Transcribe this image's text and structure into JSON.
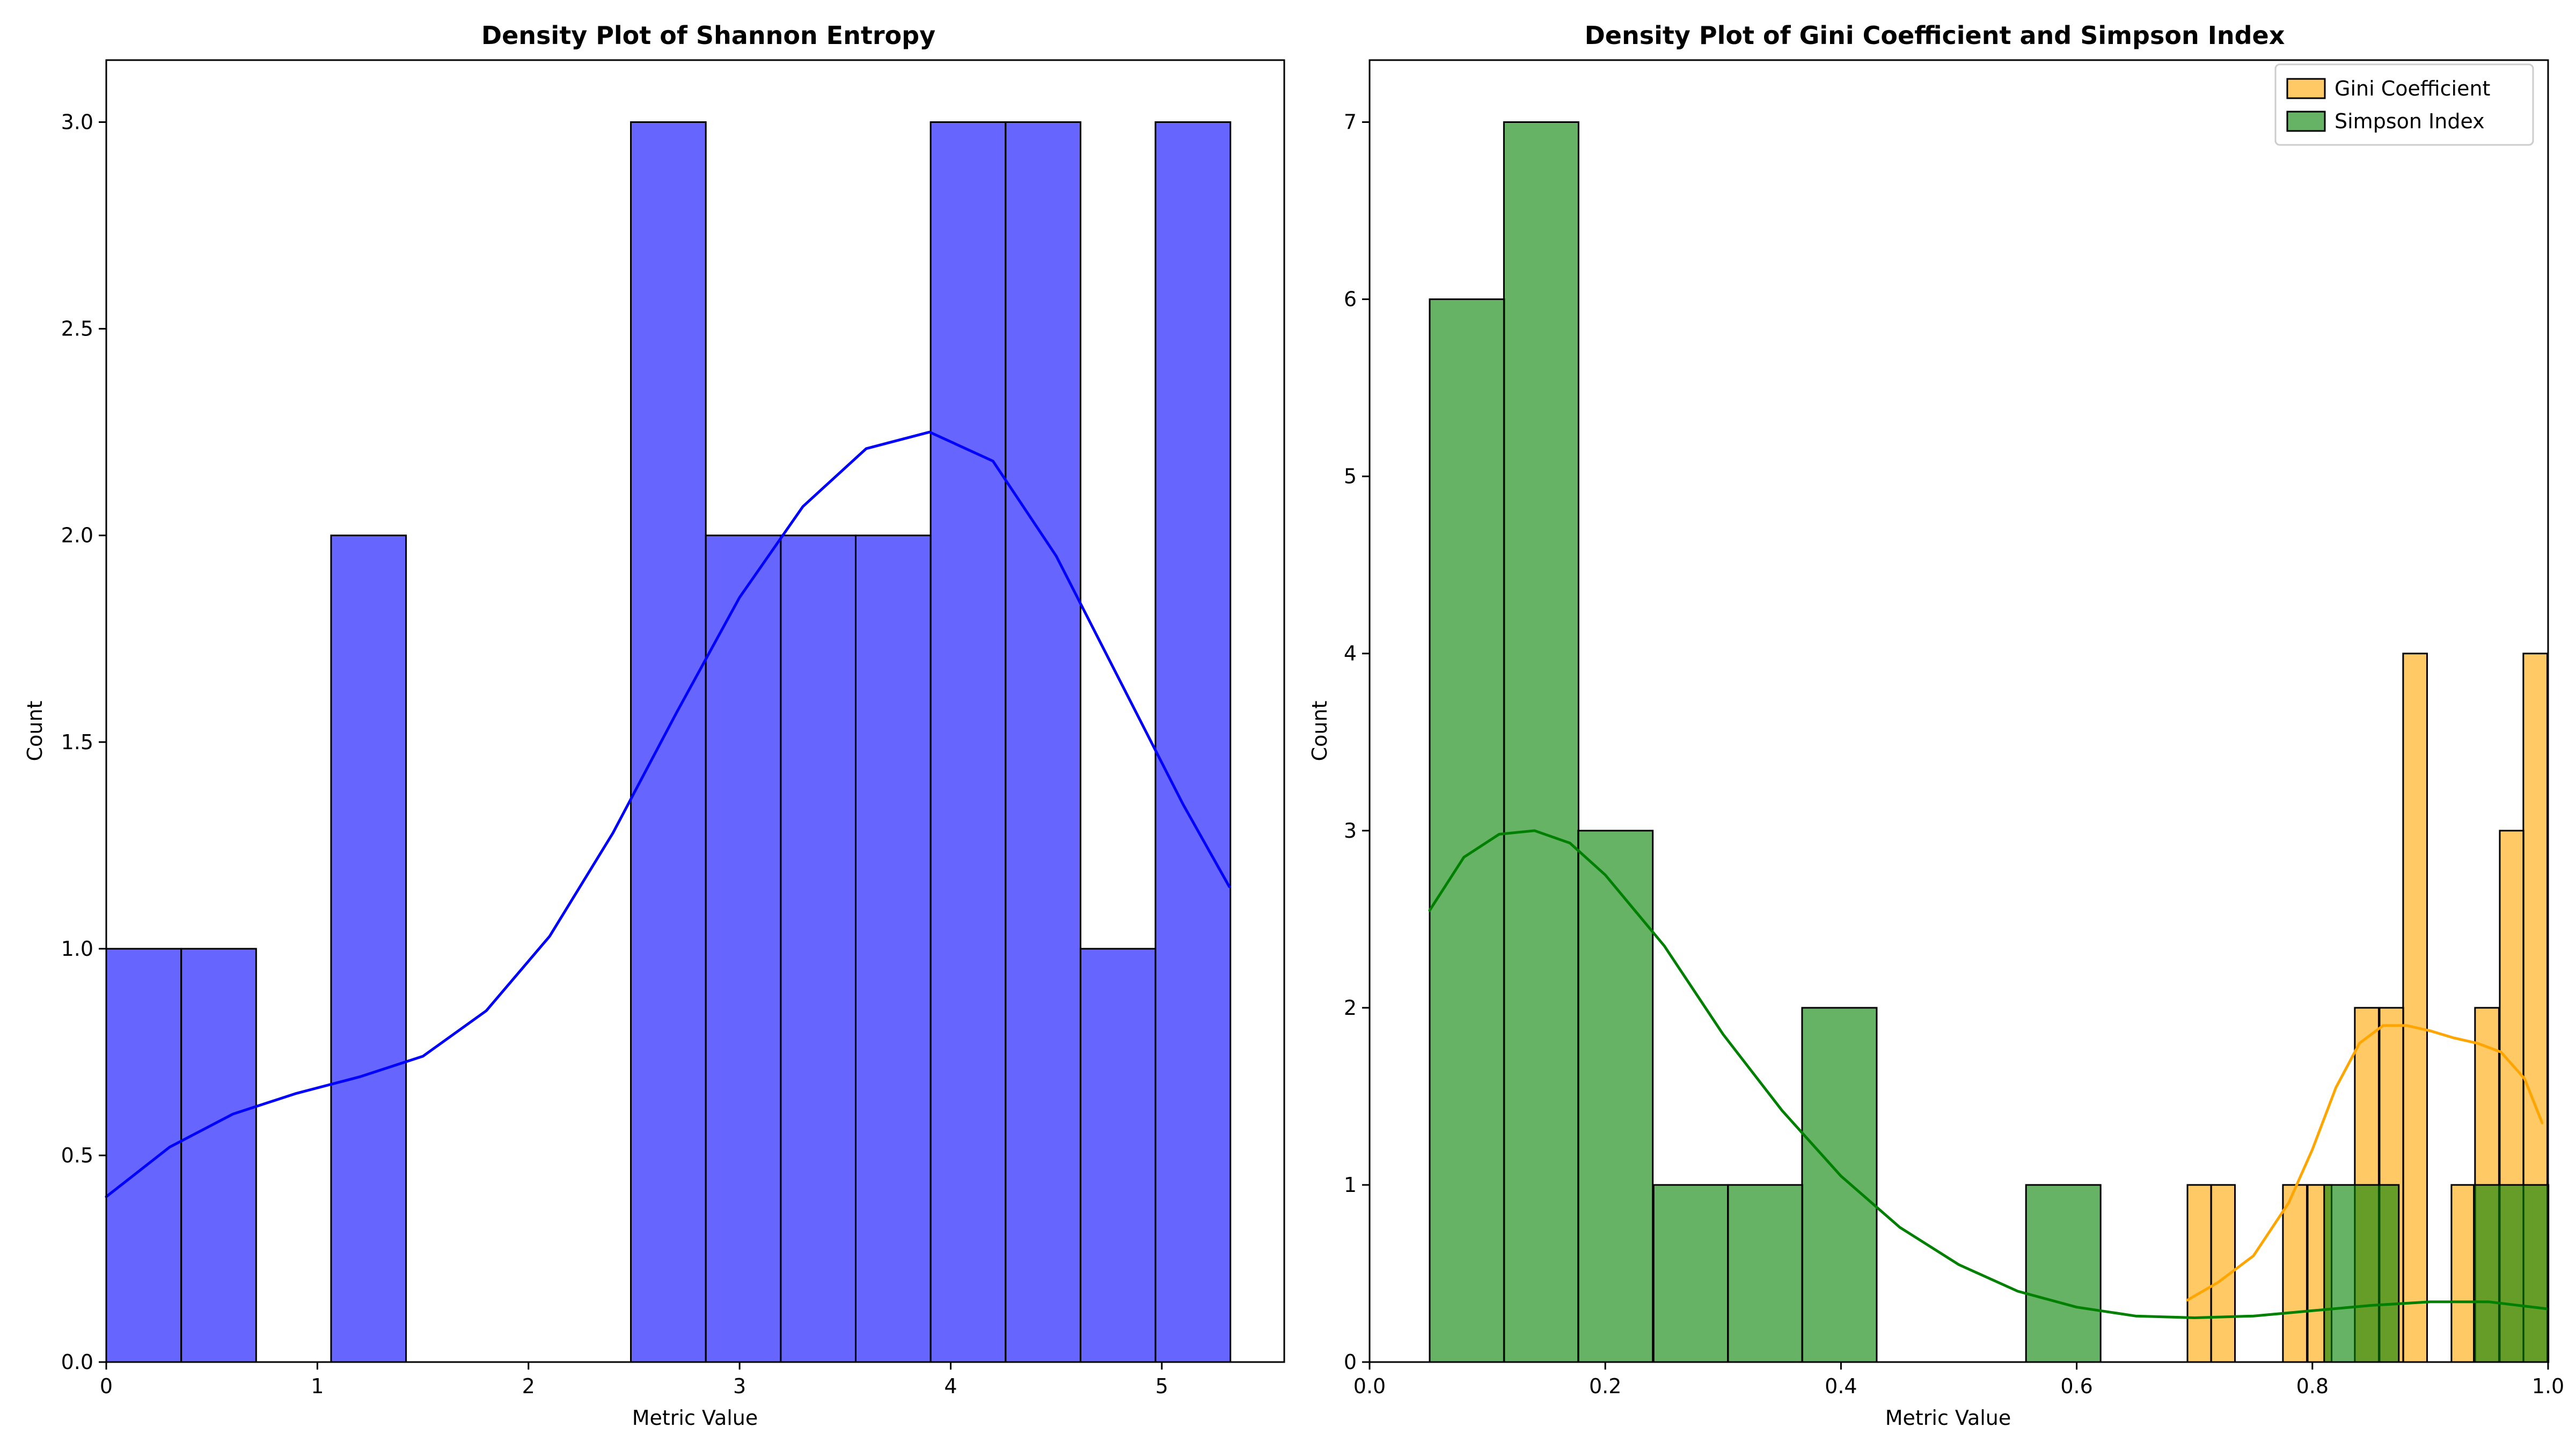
{
  "chart_data": [
    {
      "type": "histogram",
      "title": "Density Plot of Shannon Entropy",
      "xlabel": "Metric Value",
      "ylabel": "Count",
      "xlim": [
        0,
        5.58
      ],
      "ylim": [
        0,
        3.15
      ],
      "xticks": [
        "0",
        "1",
        "2",
        "3",
        "4",
        "5"
      ],
      "yticks": [
        "0.0",
        "0.5",
        "1.0",
        "1.5",
        "2.0",
        "2.5",
        "3.0"
      ],
      "grid": false,
      "series": [
        {
          "color": "#0000ff",
          "bin_width": 0.355,
          "bin_edges": [
            0.0,
            0.355,
            0.71,
            1.065,
            1.42,
            1.775,
            2.13,
            2.485,
            2.84,
            3.195,
            3.55,
            3.905,
            4.26,
            4.615,
            4.97,
            5.325
          ],
          "counts": [
            1,
            1,
            0,
            2,
            0,
            0,
            0,
            3,
            2,
            2,
            2,
            3,
            3,
            1,
            3
          ],
          "kde": {
            "x": [
              0.0,
              0.3,
              0.6,
              0.9,
              1.2,
              1.5,
              1.8,
              2.1,
              2.4,
              2.7,
              3.0,
              3.3,
              3.6,
              3.9,
              4.2,
              4.5,
              4.8,
              5.1,
              5.32
            ],
            "y": [
              0.4,
              0.52,
              0.6,
              0.65,
              0.69,
              0.74,
              0.85,
              1.03,
              1.28,
              1.57,
              1.85,
              2.07,
              2.21,
              2.25,
              2.18,
              1.95,
              1.65,
              1.35,
              1.15
            ]
          }
        }
      ]
    },
    {
      "type": "histogram",
      "title": "Density Plot of Gini Coefficient and Simpson Index",
      "xlabel": "Metric Value",
      "ylabel": "Count",
      "xlim": [
        0.0,
        1.0
      ],
      "ylim": [
        0,
        7.35
      ],
      "xticks": [
        "0.0",
        "0.2",
        "0.4",
        "0.6",
        "0.8",
        "1.0"
      ],
      "yticks": [
        "0",
        "1",
        "2",
        "3",
        "4",
        "5",
        "6",
        "7"
      ],
      "grid": false,
      "legend_position": "top-right",
      "series": [
        {
          "name": "Gini Coefficient",
          "color": "#ffa500",
          "bin_width": 0.0203,
          "bin_edges": [
            0.694,
            0.714,
            0.735,
            0.755,
            0.775,
            0.796,
            0.816,
            0.836,
            0.857,
            0.877,
            0.898,
            0.918,
            0.938,
            0.959,
            0.979,
            0.999
          ],
          "counts": [
            1,
            1,
            0,
            0,
            1,
            1,
            0,
            2,
            2,
            4,
            0,
            1,
            2,
            3,
            4
          ],
          "kde": {
            "x": [
              0.694,
              0.72,
              0.75,
              0.78,
              0.8,
              0.82,
              0.84,
              0.86,
              0.88,
              0.9,
              0.92,
              0.94,
              0.96,
              0.98,
              0.995
            ],
            "y": [
              0.35,
              0.45,
              0.6,
              0.9,
              1.2,
              1.55,
              1.8,
              1.9,
              1.9,
              1.87,
              1.83,
              1.8,
              1.75,
              1.6,
              1.35
            ]
          }
        },
        {
          "name": "Simpson Index",
          "color": "#008000",
          "bin_width": 0.0633,
          "bin_edges": [
            0.051,
            0.114,
            0.177,
            0.241,
            0.304,
            0.367,
            0.43,
            0.494,
            0.557,
            0.62,
            0.684,
            0.747,
            0.81,
            0.873,
            0.937,
            1.0
          ],
          "counts": [
            6,
            7,
            3,
            1,
            1,
            2,
            0,
            0,
            1,
            0,
            0,
            0,
            1,
            0,
            1
          ],
          "kde": {
            "x": [
              0.051,
              0.08,
              0.11,
              0.14,
              0.17,
              0.2,
              0.25,
              0.3,
              0.35,
              0.4,
              0.45,
              0.5,
              0.55,
              0.6,
              0.65,
              0.7,
              0.75,
              0.8,
              0.85,
              0.9,
              0.95,
              1.0
            ],
            "y": [
              2.55,
              2.85,
              2.98,
              3.0,
              2.93,
              2.75,
              2.35,
              1.85,
              1.42,
              1.05,
              0.76,
              0.55,
              0.4,
              0.31,
              0.26,
              0.25,
              0.26,
              0.29,
              0.32,
              0.34,
              0.34,
              0.3
            ]
          }
        }
      ]
    }
  ]
}
